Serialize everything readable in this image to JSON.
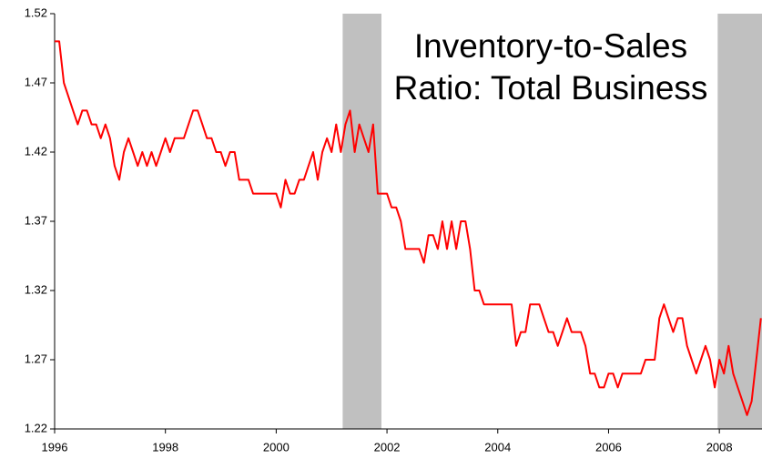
{
  "chart_data": {
    "type": "line",
    "title": "Inventory-to-Sales Ratio: Total Business",
    "x": [
      1996,
      1996.083,
      1996.167,
      1996.25,
      1996.333,
      1996.417,
      1996.5,
      1996.583,
      1996.667,
      1996.75,
      1996.833,
      1996.917,
      1997,
      1997.083,
      1997.167,
      1997.25,
      1997.333,
      1997.417,
      1997.5,
      1997.583,
      1997.667,
      1997.75,
      1997.833,
      1997.917,
      1998,
      1998.083,
      1998.167,
      1998.25,
      1998.333,
      1998.417,
      1998.5,
      1998.583,
      1998.667,
      1998.75,
      1998.833,
      1998.917,
      1999,
      1999.083,
      1999.167,
      1999.25,
      1999.333,
      1999.417,
      1999.5,
      1999.583,
      1999.667,
      1999.75,
      1999.833,
      1999.917,
      2000,
      2000.083,
      2000.167,
      2000.25,
      2000.333,
      2000.417,
      2000.5,
      2000.583,
      2000.667,
      2000.75,
      2000.833,
      2000.917,
      2001,
      2001.083,
      2001.167,
      2001.25,
      2001.333,
      2001.417,
      2001.5,
      2001.583,
      2001.667,
      2001.75,
      2001.833,
      2001.917,
      2002,
      2002.083,
      2002.167,
      2002.25,
      2002.333,
      2002.417,
      2002.5,
      2002.583,
      2002.667,
      2002.75,
      2002.833,
      2002.917,
      2003,
      2003.083,
      2003.167,
      2003.25,
      2003.333,
      2003.417,
      2003.5,
      2003.583,
      2003.667,
      2003.75,
      2003.833,
      2003.917,
      2004,
      2004.083,
      2004.167,
      2004.25,
      2004.333,
      2004.417,
      2004.5,
      2004.583,
      2004.667,
      2004.75,
      2004.833,
      2004.917,
      2005,
      2005.083,
      2005.167,
      2005.25,
      2005.333,
      2005.417,
      2005.5,
      2005.583,
      2005.667,
      2005.75,
      2005.833,
      2005.917,
      2006,
      2006.083,
      2006.167,
      2006.25,
      2006.333,
      2006.417,
      2006.5,
      2006.583,
      2006.667,
      2006.75,
      2006.833,
      2006.917,
      2007,
      2007.083,
      2007.167,
      2007.25,
      2007.333,
      2007.417,
      2007.5,
      2007.583,
      2007.667,
      2007.75,
      2007.833,
      2007.917,
      2008,
      2008.083,
      2008.167,
      2008.25,
      2008.333,
      2008.417,
      2008.5,
      2008.583,
      2008.667,
      2008.75
    ],
    "series": [
      {
        "name": "Inventory-to-Sales Ratio",
        "color": "#ff0000",
        "values": [
          1.5,
          1.5,
          1.47,
          1.46,
          1.45,
          1.44,
          1.45,
          1.45,
          1.44,
          1.44,
          1.43,
          1.44,
          1.43,
          1.41,
          1.4,
          1.42,
          1.43,
          1.42,
          1.41,
          1.42,
          1.41,
          1.42,
          1.41,
          1.42,
          1.43,
          1.42,
          1.43,
          1.43,
          1.43,
          1.44,
          1.45,
          1.45,
          1.44,
          1.43,
          1.43,
          1.42,
          1.42,
          1.41,
          1.42,
          1.42,
          1.4,
          1.4,
          1.4,
          1.39,
          1.39,
          1.39,
          1.39,
          1.39,
          1.39,
          1.38,
          1.4,
          1.39,
          1.39,
          1.4,
          1.4,
          1.41,
          1.42,
          1.4,
          1.42,
          1.43,
          1.42,
          1.44,
          1.42,
          1.44,
          1.45,
          1.42,
          1.44,
          1.43,
          1.42,
          1.44,
          1.39,
          1.39,
          1.39,
          1.38,
          1.38,
          1.37,
          1.35,
          1.35,
          1.35,
          1.35,
          1.34,
          1.36,
          1.36,
          1.35,
          1.37,
          1.35,
          1.37,
          1.35,
          1.37,
          1.37,
          1.35,
          1.32,
          1.32,
          1.31,
          1.31,
          1.31,
          1.31,
          1.31,
          1.31,
          1.31,
          1.28,
          1.29,
          1.29,
          1.31,
          1.31,
          1.31,
          1.3,
          1.29,
          1.29,
          1.28,
          1.29,
          1.3,
          1.29,
          1.29,
          1.29,
          1.28,
          1.26,
          1.26,
          1.25,
          1.25,
          1.26,
          1.26,
          1.25,
          1.26,
          1.26,
          1.26,
          1.26,
          1.26,
          1.27,
          1.27,
          1.27,
          1.3,
          1.31,
          1.3,
          1.29,
          1.3,
          1.3,
          1.28,
          1.27,
          1.26,
          1.27,
          1.28,
          1.27,
          1.25,
          1.27,
          1.26,
          1.28,
          1.26,
          1.25,
          1.24,
          1.23,
          1.24,
          1.27,
          1.3
        ]
      }
    ],
    "shaded_regions": [
      [
        2001.2,
        2001.9
      ],
      [
        2007.97,
        2008.77
      ]
    ],
    "shade_color": "#c0c0c0",
    "xlim": [
      1996,
      2008.77
    ],
    "xticks": [
      1996,
      1998,
      2000,
      2002,
      2004,
      2006,
      2008
    ],
    "ylim": [
      1.22,
      1.52
    ],
    "yticks": [
      1.22,
      1.27,
      1.32,
      1.37,
      1.42,
      1.47,
      1.52
    ]
  }
}
